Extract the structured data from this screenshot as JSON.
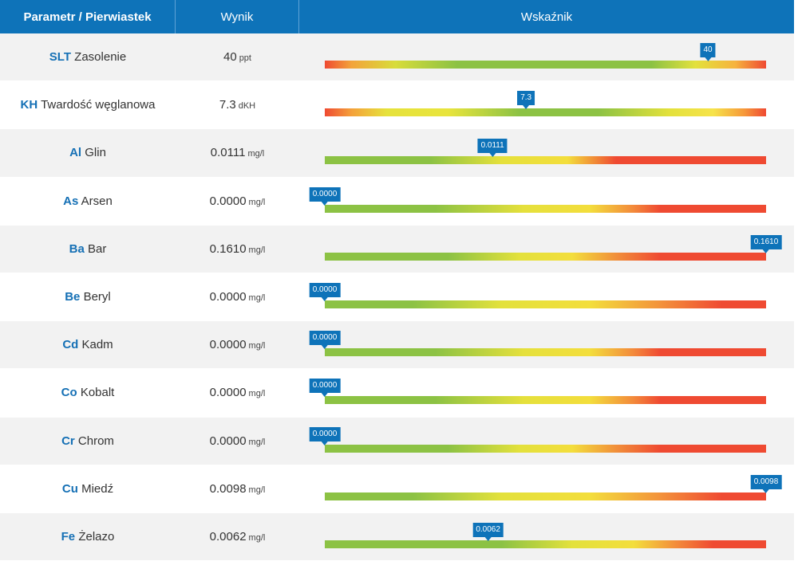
{
  "header": {
    "col_param": "Parametr / Pierwiastek",
    "col_result": "Wynik",
    "col_indicator": "Wskaźnik"
  },
  "rows": [
    {
      "symbol": "SLT",
      "name": "Zasolenie",
      "value": "40",
      "unit": "ppt",
      "marker": "40",
      "fraction": 0.868,
      "gradient": "grad-rgr"
    },
    {
      "symbol": "KH",
      "name": "Twardość węglanowa",
      "value": "7.3",
      "unit": "dKH",
      "marker": "7.3",
      "fraction": 0.456,
      "gradient": "grad-kh"
    },
    {
      "symbol": "Al",
      "name": "Glin",
      "value": "0.0111",
      "unit": "mg/l",
      "marker": "0.0111",
      "fraction": 0.38,
      "gradient": "grad-gyr"
    },
    {
      "symbol": "As",
      "name": "Arsen",
      "value": "0.0000",
      "unit": "mg/l",
      "marker": "0.0000",
      "fraction": 0.0,
      "gradient": "grad-gyr2"
    },
    {
      "symbol": "Ba",
      "name": "Bar",
      "value": "0.1610",
      "unit": "mg/l",
      "marker": "0.1610",
      "fraction": 1.0,
      "gradient": "grad-gyr3"
    },
    {
      "symbol": "Be",
      "name": "Beryl",
      "value": "0.0000",
      "unit": "mg/l",
      "marker": "0.0000",
      "fraction": 0.0,
      "gradient": "grad-gyr4"
    },
    {
      "symbol": "Cd",
      "name": "Kadm",
      "value": "0.0000",
      "unit": "mg/l",
      "marker": "0.0000",
      "fraction": 0.0,
      "gradient": "grad-gyr2"
    },
    {
      "symbol": "Co",
      "name": "Kobalt",
      "value": "0.0000",
      "unit": "mg/l",
      "marker": "0.0000",
      "fraction": 0.0,
      "gradient": "grad-gyr2"
    },
    {
      "symbol": "Cr",
      "name": "Chrom",
      "value": "0.0000",
      "unit": "mg/l",
      "marker": "0.0000",
      "fraction": 0.0,
      "gradient": "grad-gyr3"
    },
    {
      "symbol": "Cu",
      "name": "Miedź",
      "value": "0.0098",
      "unit": "mg/l",
      "marker": "0.0098",
      "fraction": 1.0,
      "gradient": "grad-gyr4"
    },
    {
      "symbol": "Fe",
      "name": "Żelazo",
      "value": "0.0062",
      "unit": "mg/l",
      "marker": "0.0062",
      "fraction": 0.37,
      "gradient": "grad-gyr5"
    }
  ],
  "colors": {
    "header_bg": "#0e73b9",
    "symbol": "#1570b5",
    "green": "#8cc244",
    "yellow": "#e3e13c",
    "red": "#ef4a32"
  }
}
